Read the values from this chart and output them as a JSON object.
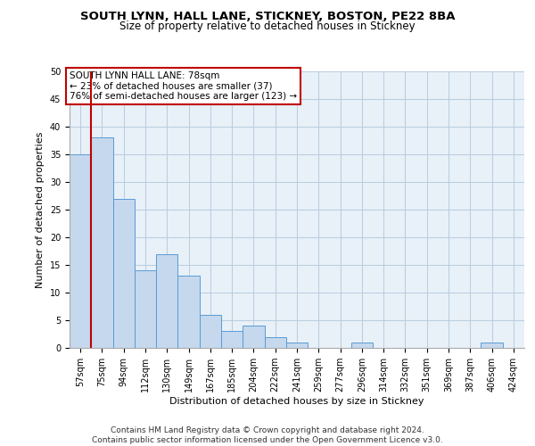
{
  "title1": "SOUTH LYNN, HALL LANE, STICKNEY, BOSTON, PE22 8BA",
  "title2": "Size of property relative to detached houses in Stickney",
  "xlabel": "Distribution of detached houses by size in Stickney",
  "ylabel": "Number of detached properties",
  "footnote": "Contains HM Land Registry data © Crown copyright and database right 2024.\nContains public sector information licensed under the Open Government Licence v3.0.",
  "categories": [
    "57sqm",
    "75sqm",
    "94sqm",
    "112sqm",
    "130sqm",
    "149sqm",
    "167sqm",
    "185sqm",
    "204sqm",
    "222sqm",
    "241sqm",
    "259sqm",
    "277sqm",
    "296sqm",
    "314sqm",
    "332sqm",
    "351sqm",
    "369sqm",
    "387sqm",
    "406sqm",
    "424sqm"
  ],
  "values": [
    35,
    38,
    27,
    14,
    17,
    13,
    6,
    3,
    4,
    2,
    1,
    0,
    0,
    1,
    0,
    0,
    0,
    0,
    0,
    1,
    0
  ],
  "bar_color": "#c5d8ed",
  "bar_edge_color": "#5b9bd5",
  "vline_color": "#c00000",
  "annotation_text": "SOUTH LYNN HALL LANE: 78sqm\n← 23% of detached houses are smaller (37)\n76% of semi-detached houses are larger (123) →",
  "annotation_box_color": "#ffffff",
  "annotation_box_edge": "#c00000",
  "ylim": [
    0,
    50
  ],
  "yticks": [
    0,
    5,
    10,
    15,
    20,
    25,
    30,
    35,
    40,
    45,
    50
  ],
  "background_color": "#ffffff",
  "axes_background": "#e8f0f8",
  "grid_color": "#b8cce0",
  "title1_fontsize": 9.5,
  "title2_fontsize": 8.5,
  "xlabel_fontsize": 8,
  "ylabel_fontsize": 8,
  "tick_fontsize": 7,
  "annot_fontsize": 7.5,
  "footnote_fontsize": 6.5
}
